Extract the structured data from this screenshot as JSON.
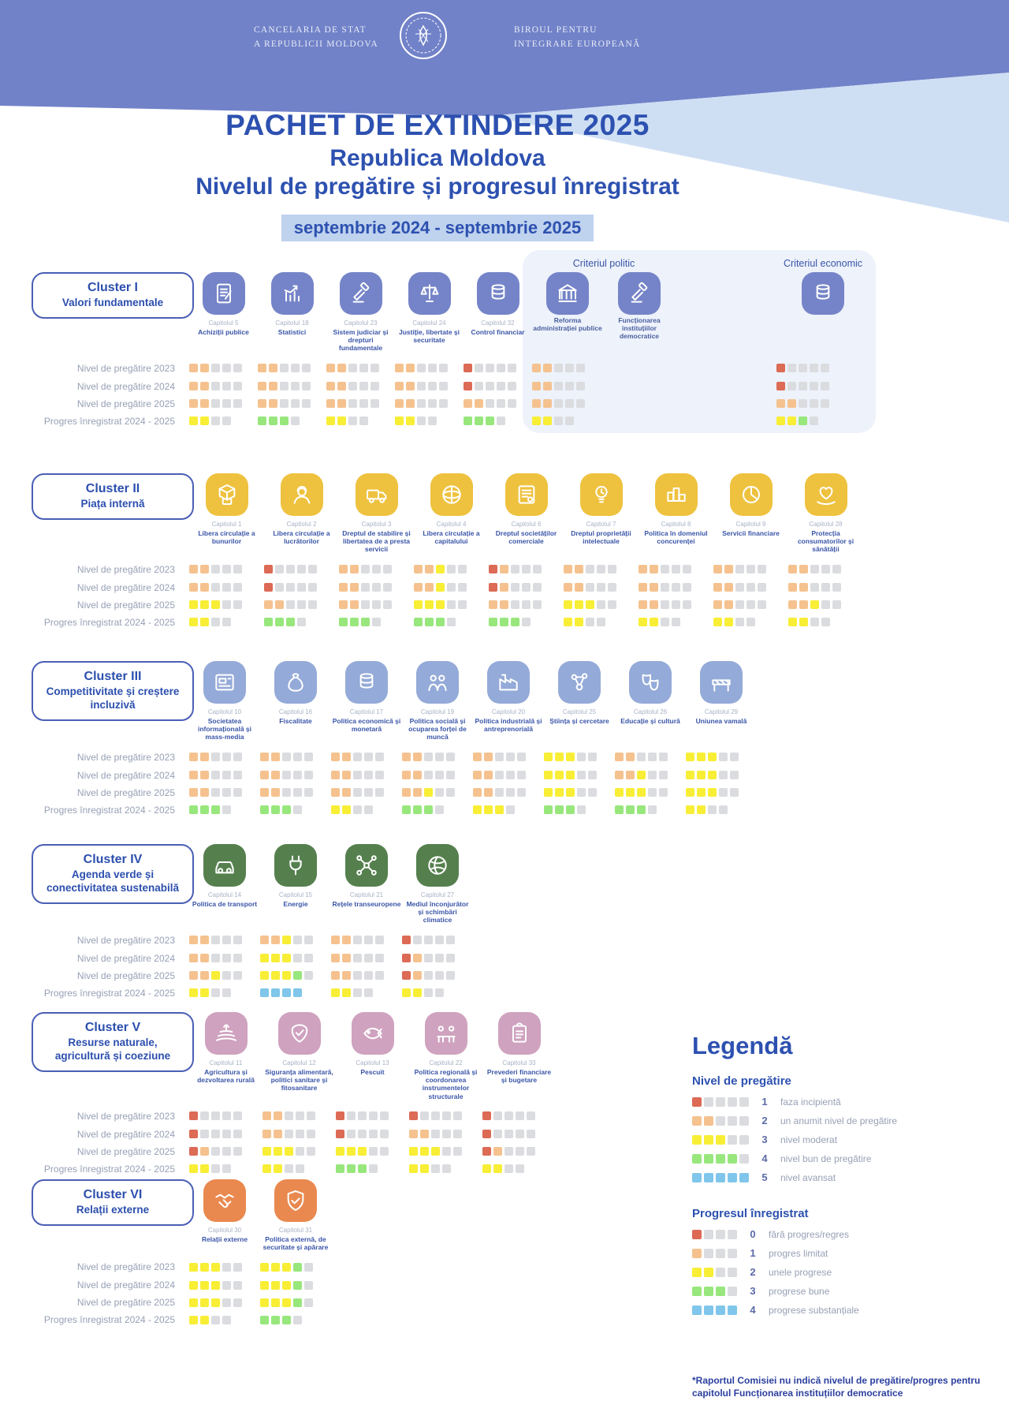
{
  "header": {
    "org_left": [
      "Cancelaria de stat",
      "a Republicii Moldova"
    ],
    "org_right": [
      "Biroul pentru",
      "Integrare Europeană"
    ],
    "title": "PACHET DE EXTINDERE 2025",
    "subtitle1": "Republica Moldova",
    "subtitle2": "Nivelul de pregătire și progresul înregistrat",
    "period": "septembrie 2024  - septembrie 2025"
  },
  "row_labels": [
    "Nivel de pregătire 2023",
    "Nivel de pregătire 2024",
    "Nivel de pregătire 2025",
    "Progres înregistrat 2024 - 2025"
  ],
  "clusters": [
    {
      "id": "I",
      "title": "Cluster I",
      "subtitle": "Valori fundamentale",
      "color": "#7584c8",
      "panel": {
        "politic_label": "Criteriul politic",
        "economic_label": "Criteriul economic"
      },
      "chapters": [
        {
          "cap": "Capitolul 5",
          "name": "Achiziții publice",
          "icon": "doc",
          "p2023": "oo",
          "p2024": "oo",
          "p2025": "oo",
          "prog": "yy"
        },
        {
          "cap": "Capitolul 18",
          "name": "Statistici",
          "icon": "chart",
          "p2023": "oo",
          "p2024": "oo",
          "p2025": "oo",
          "prog": "ggg"
        },
        {
          "cap": "Capitolul 23",
          "name": "Sistem judiciar și drepturi fundamentale",
          "icon": "gavel",
          "p2023": "oo",
          "p2024": "oo",
          "p2025": "oo",
          "prog": "yy"
        },
        {
          "cap": "Capitolul 24",
          "name": "Justiție, libertate și securitate",
          "icon": "scales",
          "p2023": "oo",
          "p2024": "oo",
          "p2025": "oo",
          "prog": "yy"
        },
        {
          "cap": "Capitolul 32",
          "name": "Control financiar",
          "icon": "coins",
          "p2023": "r",
          "p2024": "r",
          "p2025": "oo",
          "prog": "ggg"
        },
        {
          "cap": "",
          "name": "Reforma administrației publice",
          "icon": "bank",
          "group": "politic",
          "p2023": "oo",
          "p2024": "oo",
          "p2025": "oo",
          "prog": "yy"
        },
        {
          "cap": "",
          "name": "Funcționarea instituțiilor democratice",
          "icon": "gavel",
          "group": "politic",
          "p2023": "",
          "p2024": "",
          "p2025": "",
          "prog": ""
        },
        {
          "cap": "",
          "name": "",
          "icon": "coins",
          "group": "economic",
          "p2023": "r",
          "p2024": "r",
          "p2025": "oo",
          "prog": "yyg"
        }
      ]
    },
    {
      "id": "II",
      "title": "Cluster II",
      "subtitle": "Piața internă",
      "color": "#eec23f",
      "chapters": [
        {
          "cap": "Capitolul 1",
          "name": "Libera circulație a bunurilor",
          "icon": "box",
          "p2023": "oo",
          "p2024": "oo",
          "p2025": "yyy",
          "prog": "yy"
        },
        {
          "cap": "Capitolul 2",
          "name": "Libera circulație a lucrătorilor",
          "icon": "worker",
          "p2023": "r",
          "p2024": "r",
          "p2025": "oo",
          "prog": "ggg"
        },
        {
          "cap": "Capitolul 3",
          "name": "Dreptul de stabilire și libertatea de a presta servicii",
          "icon": "truck",
          "p2023": "oo",
          "p2024": "oo",
          "p2025": "oo",
          "prog": "ggg"
        },
        {
          "cap": "Capitolul 4",
          "name": "Libera circulație a capitalului",
          "icon": "globe",
          "p2023": "ooy",
          "p2024": "ooy",
          "p2025": "yyy",
          "prog": "ggg"
        },
        {
          "cap": "Capitolul 6",
          "name": "Dreptul societăților comerciale",
          "icon": "cert",
          "p2023": "ro",
          "p2024": "ro",
          "p2025": "oo",
          "prog": "ggg"
        },
        {
          "cap": "Capitolul 7",
          "name": "Dreptul proprietății intelectuale",
          "icon": "bulb",
          "p2023": "oo",
          "p2024": "oo",
          "p2025": "yyy",
          "prog": "yy"
        },
        {
          "cap": "Capitolul 8",
          "name": "Politica în domeniul concurenței",
          "icon": "podium",
          "p2023": "oo",
          "p2024": "oo",
          "p2025": "oo",
          "prog": "yy"
        },
        {
          "cap": "Capitolul 9",
          "name": "Servicii financiare",
          "icon": "pie",
          "p2023": "oo",
          "p2024": "oo",
          "p2025": "oo",
          "prog": "yy"
        },
        {
          "cap": "Capitolul 28",
          "name": "Protecția consumatorilor și sănătății",
          "icon": "hands",
          "p2023": "oo",
          "p2024": "oo",
          "p2025": "ooy",
          "prog": "yy"
        }
      ]
    },
    {
      "id": "III",
      "title": "Cluster III",
      "subtitle": "Competitivitate și creștere incluzivă",
      "color": "#94aad8",
      "chapters": [
        {
          "cap": "Capitolul 10",
          "name": "Societatea informațională și mass-media",
          "icon": "news",
          "p2023": "oo",
          "p2024": "oo",
          "p2025": "oo",
          "prog": "ggg"
        },
        {
          "cap": "Capitolul 16",
          "name": "Fiscalitate",
          "icon": "bag",
          "p2023": "oo",
          "p2024": "oo",
          "p2025": "oo",
          "prog": "ggg"
        },
        {
          "cap": "Capitolul 17",
          "name": "Politica economică și monetară",
          "icon": "coins",
          "p2023": "oo",
          "p2024": "oo",
          "p2025": "oo",
          "prog": "yy"
        },
        {
          "cap": "Capitolul 19",
          "name": "Politica socială și ocuparea forței de muncă",
          "icon": "people",
          "p2023": "oo",
          "p2024": "oo",
          "p2025": "ooy",
          "prog": "ggg"
        },
        {
          "cap": "Capitolul 20",
          "name": "Politica industrială și antreprenorială",
          "icon": "factory",
          "p2023": "oo",
          "p2024": "oo",
          "p2025": "oo",
          "prog": "yyy"
        },
        {
          "cap": "Capitolul 25",
          "name": "Știința și cercetare",
          "icon": "molecule",
          "p2023": "yyy",
          "p2024": "yyy",
          "p2025": "yyy",
          "prog": "ggg"
        },
        {
          "cap": "Capitolul 26",
          "name": "Educație și cultură",
          "icon": "masks",
          "p2023": "oo",
          "p2024": "ooy",
          "p2025": "yyy",
          "prog": "ggg"
        },
        {
          "cap": "Capitolul 29",
          "name": "Uniunea vamală",
          "icon": "barrier",
          "p2023": "yyy",
          "p2024": "yyy",
          "p2025": "yyy",
          "prog": "yy"
        }
      ]
    },
    {
      "id": "IV",
      "title": "Cluster IV",
      "subtitle": "Agenda verde și conectivitatea sustenabilă",
      "color": "#55804e",
      "chapters": [
        {
          "cap": "Capitolul 14",
          "name": "Politica de transport",
          "icon": "car",
          "p2023": "oo",
          "p2024": "oo",
          "p2025": "ooy",
          "prog": "yy"
        },
        {
          "cap": "Capitolul 15",
          "name": "Energie",
          "icon": "plug",
          "p2023": "ooy",
          "p2024": "yyy",
          "p2025": "yyyg",
          "prog": "bbbb"
        },
        {
          "cap": "Capitolul 21",
          "name": "Rețele transeuropene",
          "icon": "net",
          "p2023": "oo",
          "p2024": "oo",
          "p2025": "oo",
          "prog": "yy"
        },
        {
          "cap": "Capitolul 27",
          "name": "Mediul înconjurător și schimbări climatice",
          "icon": "climate",
          "p2023": "r",
          "p2024": "ro",
          "p2025": "ro",
          "prog": "yy"
        }
      ]
    },
    {
      "id": "V",
      "title": "Cluster V",
      "subtitle": "Resurse naturale, agricultură și coeziune",
      "color": "#cfa2bf",
      "chapters": [
        {
          "cap": "Capitolul 11",
          "name": "Agricultura și dezvoltarea rurală",
          "icon": "field",
          "p2023": "r",
          "p2024": "r",
          "p2025": "ro",
          "prog": "yy"
        },
        {
          "cap": "Capitolul 12",
          "name": "Siguranța alimentară, politici sanitare și fitosanitare",
          "icon": "food",
          "p2023": "oo",
          "p2024": "oo",
          "p2025": "yyy",
          "prog": "yy"
        },
        {
          "cap": "Capitolul 13",
          "name": "Pescuit",
          "icon": "fish",
          "p2023": "r",
          "p2024": "r",
          "p2025": "yyy",
          "prog": "ggg"
        },
        {
          "cap": "Capitolul 22",
          "name": "Politica regională și coordonarea instrumentelor structurale",
          "icon": "meeting",
          "p2023": "r",
          "p2024": "oo",
          "p2025": "yyy",
          "prog": "yy"
        },
        {
          "cap": "Capitolul 33",
          "name": "Prevederi financiare și bugetare",
          "icon": "clipboard",
          "p2023": "r",
          "p2024": "r",
          "p2025": "ro",
          "prog": "yy"
        }
      ]
    },
    {
      "id": "VI",
      "title": "Cluster VI",
      "subtitle": "Relații externe",
      "color": "#e9894f",
      "chapters": [
        {
          "cap": "Capitolul 30",
          "name": "Relații externe",
          "icon": "handshake",
          "p2023": "yyy",
          "p2024": "yyy",
          "p2025": "yyy",
          "prog": "yy"
        },
        {
          "cap": "Capitolul 31",
          "name": "Politica externă, de securitate și apărare",
          "icon": "shieldcheck",
          "p2023": "yyyg",
          "p2024": "yyyg",
          "p2025": "yyyg",
          "prog": "ggg"
        }
      ]
    }
  ],
  "legend": {
    "title": "Legendă",
    "prep_title": "Nivel de pregătire",
    "prep_items": [
      {
        "value": "1",
        "label": "faza incipientă",
        "squares": "r"
      },
      {
        "value": "2",
        "label": "un anumit nivel de pregătire",
        "squares": "oo"
      },
      {
        "value": "3",
        "label": "nivel moderat",
        "squares": "yyy"
      },
      {
        "value": "4",
        "label": "nivel bun de pregătire",
        "squares": "gggg"
      },
      {
        "value": "5",
        "label": "nivel avansat",
        "squares": "bbbbb"
      }
    ],
    "prog_title": "Progresul  înregistrat",
    "prog_items": [
      {
        "value": "0",
        "label": "fără progres/regres",
        "squares": "r"
      },
      {
        "value": "1",
        "label": "progres limitat",
        "squares": "o"
      },
      {
        "value": "2",
        "label": "unele progrese",
        "squares": "yy"
      },
      {
        "value": "3",
        "label": "progrese bune",
        "squares": "ggg"
      },
      {
        "value": "4",
        "label": "progrese substanțiale",
        "squares": "bbbb"
      }
    ]
  },
  "footnote": "*Raportul Comisiei nu indică nivelul de pregătire/progres pentru capitolul Funcționarea instituțiilor democratice",
  "colors": {
    "accent_blue": "#2d51b0",
    "band_purple": "#7182c8",
    "band_light": "#cfdff3",
    "square_red": "#dc6a55",
    "square_orange": "#f5c28f",
    "square_yellow": "#f8ee35",
    "square_green": "#98e77d",
    "square_blue": "#7fc6ea",
    "square_empty": "#dbdcdf"
  },
  "chart_data": {
    "type": "heatmap",
    "title": "PACHET DE EXTINDERE 2025 — Republica Moldova — Nivelul de pregătire și progresul înregistrat",
    "period": "septembrie 2024 - septembrie 2025",
    "rows": [
      "Nivel de pregătire 2023",
      "Nivel de pregătire 2024",
      "Nivel de pregătire 2025",
      "Progres înregistrat 2024 - 2025"
    ],
    "prep_scale": {
      "1": "faza incipientă",
      "2": "un anumit nivel de pregătire",
      "3": "nivel moderat",
      "4": "nivel bun de pregătire",
      "5": "nivel avansat"
    },
    "progress_scale": {
      "0": "fără progres/regres",
      "1": "progres limitat",
      "2": "unele progrese",
      "3": "progrese bune",
      "4": "progrese substanțiale"
    },
    "values_per_chapter": [
      {
        "cluster": "I",
        "chapter": "Capitolul 5 Achiziții publice",
        "prep": [
          2,
          2,
          2
        ],
        "progress": 2
      },
      {
        "cluster": "I",
        "chapter": "Capitolul 18 Statistici",
        "prep": [
          2,
          2,
          2
        ],
        "progress": 3
      },
      {
        "cluster": "I",
        "chapter": "Capitolul 23 Sistem judiciar și drepturi fundamentale",
        "prep": [
          2,
          2,
          2
        ],
        "progress": 2
      },
      {
        "cluster": "I",
        "chapter": "Capitolul 24 Justiție, libertate și securitate",
        "prep": [
          2,
          2,
          2
        ],
        "progress": 2
      },
      {
        "cluster": "I",
        "chapter": "Capitolul 32 Control financiar",
        "prep": [
          1,
          1,
          2
        ],
        "progress": 3
      },
      {
        "cluster": "I",
        "chapter": "Reforma administrației publice (Criteriul politic)",
        "prep": [
          2,
          2,
          2
        ],
        "progress": 2
      },
      {
        "cluster": "I",
        "chapter": "Funcționarea instituțiilor democratice (Criteriul politic)",
        "prep": null,
        "progress": null
      },
      {
        "cluster": "I",
        "chapter": "Criteriul economic",
        "prep": [
          1,
          1,
          2
        ],
        "progress": "2-3"
      },
      {
        "cluster": "II",
        "chapter": "Capitolul 1 Libera circulație a bunurilor",
        "prep": [
          2,
          2,
          3
        ],
        "progress": 2
      },
      {
        "cluster": "II",
        "chapter": "Capitolul 2 Libera circulație a lucrătorilor",
        "prep": [
          1,
          1,
          2
        ],
        "progress": 3
      },
      {
        "cluster": "II",
        "chapter": "Capitolul 3 Dreptul de stabilire și libertatea de a presta servicii",
        "prep": [
          2,
          2,
          2
        ],
        "progress": 3
      },
      {
        "cluster": "II",
        "chapter": "Capitolul 4 Libera circulație a capitalului",
        "prep": [
          "2-3",
          "2-3",
          3
        ],
        "progress": 3
      },
      {
        "cluster": "II",
        "chapter": "Capitolul 6 Dreptul societăților comerciale",
        "prep": [
          "1-2",
          "1-2",
          2
        ],
        "progress": 3
      },
      {
        "cluster": "II",
        "chapter": "Capitolul 7 Dreptul proprietății intelectuale",
        "prep": [
          2,
          2,
          3
        ],
        "progress": 2
      },
      {
        "cluster": "II",
        "chapter": "Capitolul 8 Politica în domeniul concurenței",
        "prep": [
          2,
          2,
          2
        ],
        "progress": 2
      },
      {
        "cluster": "II",
        "chapter": "Capitolul 9 Servicii financiare",
        "prep": [
          2,
          2,
          2
        ],
        "progress": 2
      },
      {
        "cluster": "II",
        "chapter": "Capitolul 28 Protecția consumatorilor și sănătății",
        "prep": [
          2,
          2,
          "2-3"
        ],
        "progress": 2
      },
      {
        "cluster": "III",
        "chapter": "Capitolul 10 Societatea informațională și mass-media",
        "prep": [
          2,
          2,
          2
        ],
        "progress": 3
      },
      {
        "cluster": "III",
        "chapter": "Capitolul 16 Fiscalitate",
        "prep": [
          2,
          2,
          2
        ],
        "progress": 3
      },
      {
        "cluster": "III",
        "chapter": "Capitolul 17 Politica economică și monetară",
        "prep": [
          2,
          2,
          2
        ],
        "progress": 2
      },
      {
        "cluster": "III",
        "chapter": "Capitolul 19 Politica socială și ocuparea forței de muncă",
        "prep": [
          2,
          2,
          "2-3"
        ],
        "progress": 3
      },
      {
        "cluster": "III",
        "chapter": "Capitolul 20 Politica industrială și antreprenorială",
        "prep": [
          2,
          2,
          2
        ],
        "progress": "2-3"
      },
      {
        "cluster": "III",
        "chapter": "Capitolul 25 Știința și cercetare",
        "prep": [
          3,
          3,
          3
        ],
        "progress": 3
      },
      {
        "cluster": "III",
        "chapter": "Capitolul 26 Educație și cultură",
        "prep": [
          2,
          "2-3",
          3
        ],
        "progress": 3
      },
      {
        "cluster": "III",
        "chapter": "Capitolul 29 Uniunea vamală",
        "prep": [
          3,
          3,
          3
        ],
        "progress": 2
      },
      {
        "cluster": "IV",
        "chapter": "Capitolul 14 Politica de transport",
        "prep": [
          2,
          2,
          "2-3"
        ],
        "progress": 2
      },
      {
        "cluster": "IV",
        "chapter": "Capitolul 15 Energie",
        "prep": [
          "2-3",
          3,
          "3-4"
        ],
        "progress": 4
      },
      {
        "cluster": "IV",
        "chapter": "Capitolul 21 Rețele transeuropene",
        "prep": [
          2,
          2,
          2
        ],
        "progress": 2
      },
      {
        "cluster": "IV",
        "chapter": "Capitolul 27 Mediul înconjurător și schimbări climatice",
        "prep": [
          1,
          "1-2",
          "1-2"
        ],
        "progress": 2
      },
      {
        "cluster": "V",
        "chapter": "Capitolul 11 Agricultura și dezvoltarea rurală",
        "prep": [
          1,
          1,
          "1-2"
        ],
        "progress": 2
      },
      {
        "cluster": "V",
        "chapter": "Capitolul 12 Siguranța alimentară, politici sanitare și fitosanitare",
        "prep": [
          2,
          2,
          3
        ],
        "progress": 2
      },
      {
        "cluster": "V",
        "chapter": "Capitolul 13 Pescuit",
        "prep": [
          1,
          1,
          3
        ],
        "progress": 3
      },
      {
        "cluster": "V",
        "chapter": "Capitolul 22 Politica regională și coordonarea instrumentelor structurale",
        "prep": [
          1,
          2,
          3
        ],
        "progress": 2
      },
      {
        "cluster": "V",
        "chapter": "Capitolul 33 Prevederi financiare și bugetare",
        "prep": [
          1,
          1,
          "1-2"
        ],
        "progress": 2
      },
      {
        "cluster": "VI",
        "chapter": "Capitolul 30 Relații externe",
        "prep": [
          3,
          3,
          3
        ],
        "progress": 2
      },
      {
        "cluster": "VI",
        "chapter": "Capitolul 31 Politica externă, de securitate și apărare",
        "prep": [
          "3-4",
          "3-4",
          "3-4"
        ],
        "progress": 3
      }
    ]
  }
}
